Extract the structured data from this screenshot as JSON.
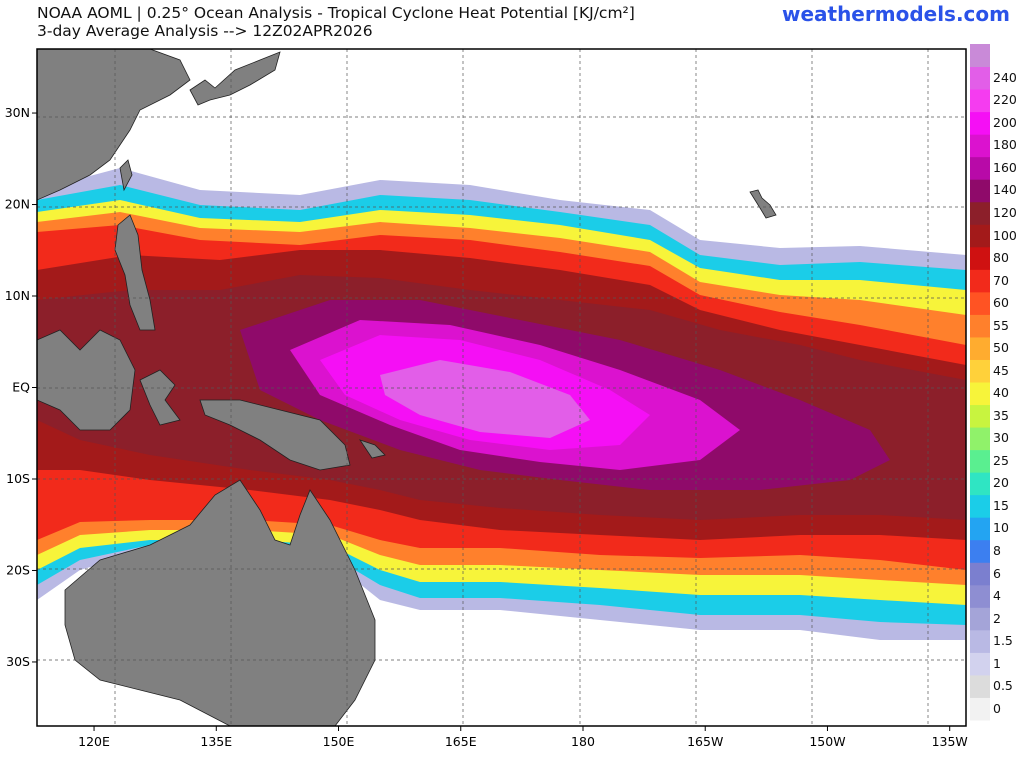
{
  "header": {
    "title_line1": "NOAA AOML | 0.25° Ocean Analysis - Tropical Cyclone Heat Potential [KJ/cm²]",
    "title_line2": "3-day Average Analysis --> 12Z02APR2026",
    "brand": "weathermodels.com"
  },
  "map": {
    "lon_range": [
      113,
      227
    ],
    "lat_range": [
      -37,
      37
    ],
    "lon_ticks": [
      {
        "value": 120,
        "label": "120E"
      },
      {
        "value": 135,
        "label": "135E"
      },
      {
        "value": 150,
        "label": "150E"
      },
      {
        "value": 165,
        "label": "165E"
      },
      {
        "value": 180,
        "label": "180"
      },
      {
        "value": 195,
        "label": "165W"
      },
      {
        "value": 210,
        "label": "150W"
      },
      {
        "value": 225,
        "label": "135W"
      }
    ],
    "lat_ticks": [
      {
        "value": 30,
        "label": "30N"
      },
      {
        "value": 20,
        "label": "20N"
      },
      {
        "value": 10,
        "label": "10N"
      },
      {
        "value": 0,
        "label": "EQ"
      },
      {
        "value": -10,
        "label": "10S"
      },
      {
        "value": -20,
        "label": "20S"
      },
      {
        "value": -30,
        "label": "30S"
      }
    ],
    "grid": true,
    "land_color": "#808080",
    "ocean_low_color": "#ffffff"
  },
  "colorbar": {
    "levels": [
      "0",
      "0.5",
      "1",
      "1.5",
      "2",
      "4",
      "6",
      "8",
      "10",
      "15",
      "20",
      "25",
      "30",
      "35",
      "40",
      "45",
      "50",
      "55",
      "60",
      "70",
      "80",
      "100",
      "120",
      "140",
      "160",
      "180",
      "200",
      "220",
      "240"
    ],
    "colors": [
      "#f2f2f2",
      "#dcdcdc",
      "#d2d2ee",
      "#b9b9e4",
      "#a4a4d8",
      "#8e8ed2",
      "#7b7fcf",
      "#3c7ff0",
      "#23a4f2",
      "#1bcde8",
      "#2fe5c3",
      "#5aef90",
      "#90f26a",
      "#c8f43f",
      "#f7f43a",
      "#ffd13a",
      "#ffac2f",
      "#ff802c",
      "#ff5323",
      "#f22a1b",
      "#cf1111",
      "#a31a1a",
      "#8c1f2a",
      "#8f0a6a",
      "#b80aa8",
      "#db12cf",
      "#f50ff5",
      "#f53cf0",
      "#e25ee8",
      "#c98ad8"
    ]
  }
}
